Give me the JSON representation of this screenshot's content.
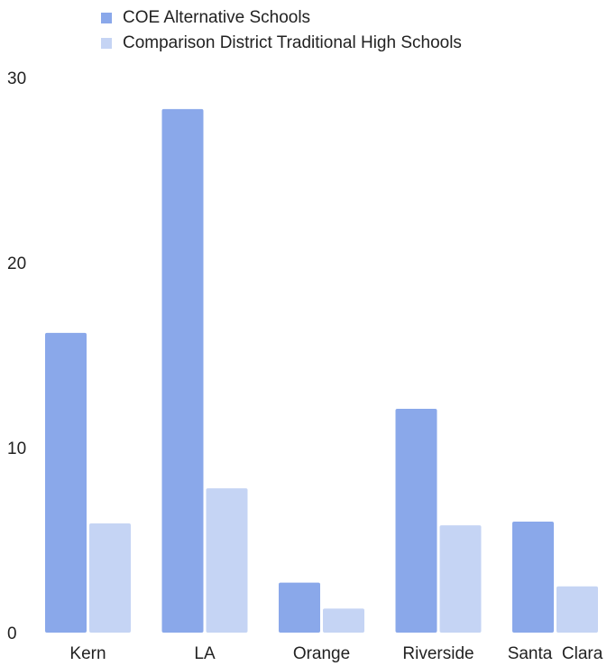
{
  "chart_data": {
    "type": "bar",
    "categories": [
      "Kern",
      "LA",
      "Orange",
      "Riverside",
      "Santa  Clara"
    ],
    "series": [
      {
        "name": "COE Alternative Schools",
        "color": "#8aa8ea",
        "values": [
          16.2,
          28.3,
          2.7,
          12.1,
          6.0
        ]
      },
      {
        "name": "Comparison District Traditional High Schools",
        "color": "#c5d4f4",
        "values": [
          5.9,
          7.8,
          1.3,
          5.8,
          2.5
        ]
      }
    ],
    "yticks": [
      0,
      10,
      20,
      30
    ],
    "ylim": [
      0,
      30
    ],
    "title": "",
    "xlabel": "",
    "ylabel": "",
    "grid": false,
    "legend_position": "top-left"
  }
}
